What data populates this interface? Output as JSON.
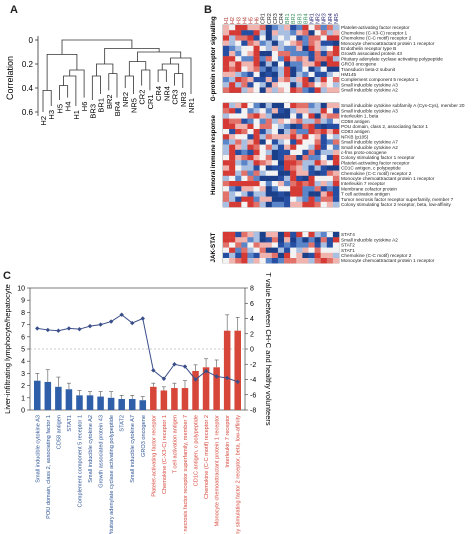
{
  "panel_labels": {
    "a": "A",
    "b": "B",
    "c": "C"
  },
  "panel_a": {
    "ylabel": "Correlation",
    "yticks": [
      "0",
      "0.2",
      "0.4",
      "0.6"
    ],
    "leaves": [
      "H2",
      "H3",
      "H5",
      "H4",
      "H1",
      "H6",
      "BR3",
      "BR1",
      "BR2",
      "BR4",
      "NR2",
      "NR5",
      "CR2",
      "CR1",
      "CR4",
      "NR4",
      "CR3",
      "NR3",
      "NR1"
    ]
  },
  "panel_b": {
    "col_labels": [
      "H1",
      "H2",
      "H3",
      "H4",
      "H5",
      "H6",
      "CR1",
      "CR2",
      "CR3",
      "CR4",
      "BR1",
      "BR2",
      "BR3",
      "BR4",
      "NR1",
      "NR2",
      "NR3",
      "NR4",
      "NR5"
    ],
    "col_colors": [
      "#b0332c",
      "#b0332c",
      "#b0332c",
      "#b0332c",
      "#b0332c",
      "#b0332c",
      "#222222",
      "#222222",
      "#222222",
      "#222222",
      "#2e8b57",
      "#2e8b57",
      "#2e8b57",
      "#2e8b57",
      "#1a1a6e",
      "#1a1a6e",
      "#1a1a6e",
      "#1a1a6e",
      "#1a1a6e"
    ],
    "sections": [
      {
        "title": "G-protein receptor signalling",
        "genes": [
          "Platelet-activating factor receptor",
          "Chemokine (C-X3-C) receptor 1",
          "Chemokine (C-C motif) receptor 2",
          "Monocyte chemoattractant protein 1 receptor",
          "Endothelin receptor type B",
          "Growth associated protein 43",
          "Pituitary adenylate cyclase activating polypeptide",
          "GRO3 oncogene",
          "Transducin beta-2 subunit",
          "HM145",
          "Complement component 5 receptor 1",
          "Small inducible cytokine A3",
          "Small inducible cytokine A2"
        ]
      },
      {
        "title": "Humoral immune response",
        "genes": [
          "Small inducible cytokine subfamily A (Cys-Cys), member 20",
          "Small inducible cytokine A3",
          "Interleukin 1, beta",
          "CD58 antigen",
          "POU domain, class 2, associating factor 1",
          "CD83 antigen",
          "NFKB (p105)",
          "Small inducible cytokine A7",
          "Small inducible cytokine A2",
          "c-fms proto-oncogene",
          "Colony stimulating factor 1 receptor",
          "Platelet-activating factor receptor",
          "CD1C antigen, c polypeptide",
          "Chemokine (C-C motif) receptor 2",
          "Monocyte chemoattractant protein 1 receptor",
          "Interleukin 7 receptor",
          "Membrane cofactor protein",
          "T cell activation antigen",
          "Tumor necrosis factor receptor superfamily, member 7",
          "Colony stimulating factor 2 receptor, beta, low-affinity"
        ]
      },
      {
        "title": "JAK-STAT",
        "genes": [
          "STAT4",
          "Small inducible cytokine A2",
          "STAT2",
          "STAT1",
          "Chemokine (C-C motif) receptor 2",
          "Monocyte chemoattractant protein 1 receptor"
        ]
      }
    ]
  },
  "chart_data": {
    "type": "bar",
    "ylabel": "Liver-infiltrating lymphocyte/hepatocyte",
    "y2label": "T value between CH-C and healthy volunteers",
    "ylim": [
      0,
      10
    ],
    "y2lim": [
      -8,
      8
    ],
    "yticks": [
      "0",
      "1",
      "2",
      "3",
      "4",
      "5",
      "6",
      "7",
      "8",
      "9",
      "10"
    ],
    "y2ticks": [
      "-8",
      "-6",
      "-4",
      "-2",
      "0",
      "2",
      "4",
      "6",
      "8"
    ],
    "categories": [
      "Small inducible cytokine A3",
      "POU domain, class 2, associating factor 1",
      "CD58 antigen",
      "STAT1",
      "Complement component 5 receptor 1",
      "Small inducible cytokine A2",
      "Growth associated protein 43",
      "Pituitary adenylate cyclase activating polypeptide",
      "STAT2",
      "Small inducible cytokine A7",
      "GRO3 oncogene",
      "Platelet-activating factor receptor",
      "Chemokine (C-X3-C) receptor 1",
      "T cell activation antigen",
      "Tumor necrosis factor receptor superfamily, member 7",
      "CD1C antigen, c polypeptide",
      "Chemokine (C-C motif) receptor 2",
      "Monocyte chemoattractant protein 1 receptor",
      "Interleukin 7 receptor",
      "Colony stimulating factor 2 receptor, beta, low-affinity"
    ],
    "label_colors": [
      "#2f5597",
      "#2f5597",
      "#2f5597",
      "#2f5597",
      "#2f5597",
      "#2f5597",
      "#2f5597",
      "#2f5597",
      "#2f5597",
      "#2f5597",
      "#2f5597",
      "#d6473a",
      "#d6473a",
      "#d6473a",
      "#d6473a",
      "#d6473a",
      "#d6473a",
      "#d6473a",
      "#d6473a",
      "#d6473a"
    ],
    "bars": [
      2.4,
      2.3,
      1.9,
      1.7,
      1.2,
      1.2,
      1.1,
      1.0,
      0.9,
      0.9,
      0.8,
      1.9,
      1.6,
      1.8,
      1.8,
      3.2,
      3.5,
      3.5,
      6.5,
      6.5
    ],
    "errors": [
      0.6,
      1.0,
      0.8,
      0.5,
      0.4,
      0.3,
      0.4,
      0.5,
      0.3,
      0.3,
      0.3,
      0.3,
      0.3,
      0.4,
      0.6,
      0.5,
      0.7,
      0.6,
      1.3,
      1.1
    ],
    "bar_colors": [
      "#2f5fa8",
      "#2f5fa8",
      "#2f5fa8",
      "#2f5fa8",
      "#2f5fa8",
      "#2f5fa8",
      "#2f5fa8",
      "#2f5fa8",
      "#2f5fa8",
      "#2f5fa8",
      "#2f5fa8",
      "#d6473a",
      "#d6473a",
      "#d6473a",
      "#d6473a",
      "#d6473a",
      "#d6473a",
      "#d6473a",
      "#d6473a",
      "#d6473a"
    ],
    "line": [
      2.7,
      2.5,
      2.4,
      2.7,
      2.6,
      3.0,
      3.2,
      3.6,
      4.5,
      3.4,
      4.0,
      -2.8,
      -3.9,
      -2.0,
      -2.3,
      -4.0,
      -2.9,
      -3.6,
      -3.8,
      -4.3
    ]
  }
}
